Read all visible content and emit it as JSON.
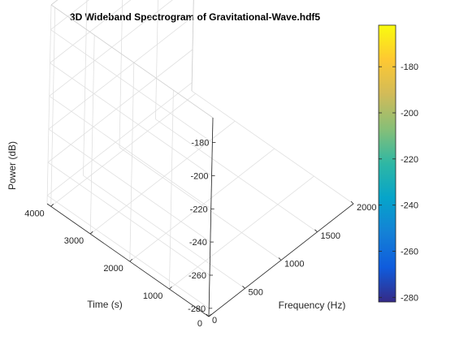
{
  "chart_data": {
    "type": "surface",
    "title": "3D Wideband Spectrogram of Gravitational-Wave.hdf5",
    "xlabel": "Frequency (Hz)",
    "ylabel": "Time (s)",
    "zlabel": "Power (dB)",
    "xlim": [
      0,
      2000
    ],
    "ylim": [
      0,
      4096
    ],
    "zlim": [
      -285,
      -165
    ],
    "xticks": [
      0,
      500,
      1000,
      1500,
      2000
    ],
    "yticks": [
      0,
      1000,
      2000,
      3000,
      4000
    ],
    "zticks": [
      -280,
      -260,
      -240,
      -220,
      -200,
      -180
    ],
    "grid": true,
    "colormap": "parula",
    "colorbar": {
      "location": "right",
      "limits": [
        -282,
        -162
      ],
      "ticks": [
        -280,
        -260,
        -240,
        -220,
        -200,
        -180
      ]
    },
    "colors": {
      "parula": [
        "#352a87",
        "#0f5cdd",
        "#1481d6",
        "#06a4ca",
        "#2eb7a4",
        "#87bf77",
        "#d1bb59",
        "#fec832",
        "#f9fb0e"
      ]
    }
  }
}
